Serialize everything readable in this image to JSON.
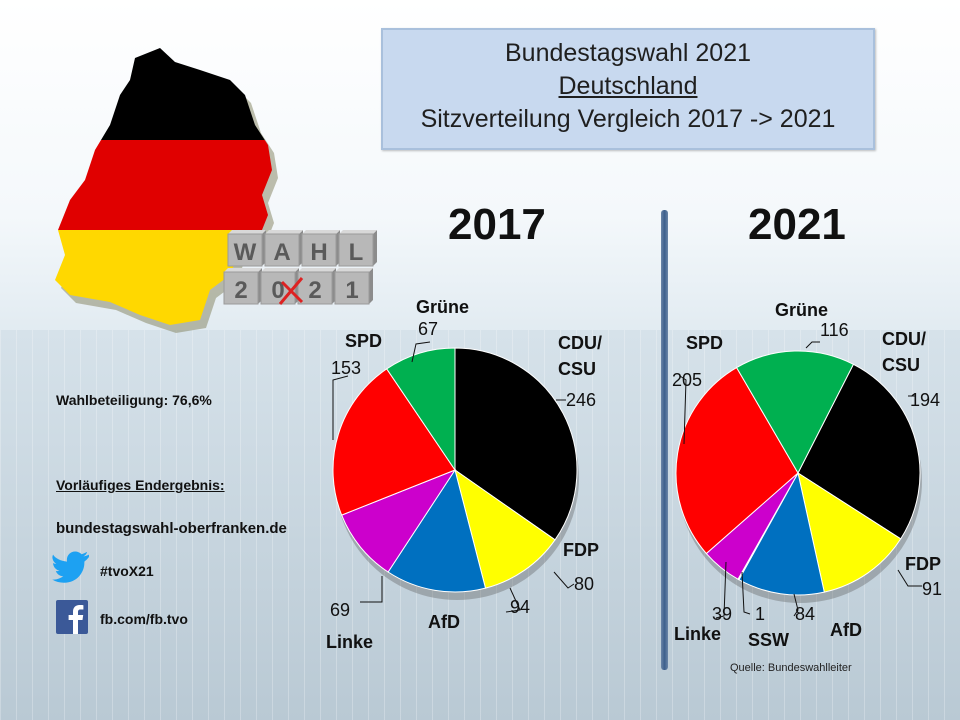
{
  "title": {
    "line1": "Bundestagswahl 2021",
    "line2": "Deutschland",
    "line3": "Sitzverteilung Vergleich 2017 -> 2021"
  },
  "graphic": {
    "wahl_letters": [
      "W",
      "A",
      "H",
      "L"
    ],
    "year_tiles": [
      "2",
      "0",
      "2",
      "1"
    ]
  },
  "info": {
    "turnout": "Wahlbeteiligung: 76,6%",
    "result_note": "Vorläufiges Endergebnis:",
    "website": "bundestagswahl-oberfranken.de",
    "twitter": "#tvoX21",
    "facebook": "fb.com/fb.tvo"
  },
  "source": "Quelle: Bundeswahlleiter",
  "colors": {
    "CDU/CSU": "#000000",
    "FDP": "#ffff00",
    "AfD": "#0070c0",
    "Linke": "#cc00cc",
    "SSW": "#1a3a8a",
    "SPD": "#ff0000",
    "Grüne": "#00b050"
  },
  "chart_data": [
    {
      "type": "pie",
      "title": "2017",
      "categories": [
        "CDU/CSU",
        "FDP",
        "AfD",
        "Linke",
        "SPD",
        "Grüne"
      ],
      "labels": [
        "CDU/\nCSU",
        "FDP",
        "AfD",
        "Linke",
        "SPD",
        "Grüne"
      ],
      "values": [
        246,
        80,
        94,
        69,
        153,
        67
      ]
    },
    {
      "type": "pie",
      "title": "2021",
      "categories": [
        "CDU/CSU",
        "FDP",
        "AfD",
        "SSW",
        "Linke",
        "SPD",
        "Grüne"
      ],
      "labels": [
        "CDU/\nCSU",
        "FDP",
        "AfD",
        "SSW",
        "Linke",
        "SPD",
        "Grüne"
      ],
      "values": [
        194,
        91,
        84,
        1,
        39,
        205,
        116
      ]
    }
  ]
}
